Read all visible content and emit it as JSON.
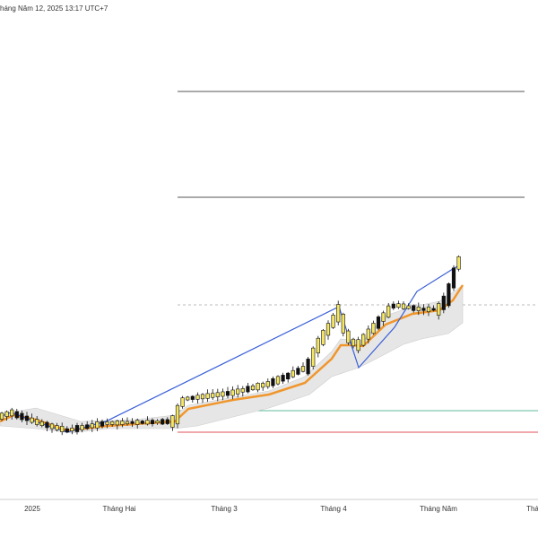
{
  "header": {
    "timestamp": "háng Năm 12, 2025 13:17 UTC+7"
  },
  "time_axis": {
    "labels": [
      "2025",
      "Tháng Hai",
      "Tháng 3",
      "Tháng 4",
      "Tháng Năm",
      "Thá"
    ]
  }
}
